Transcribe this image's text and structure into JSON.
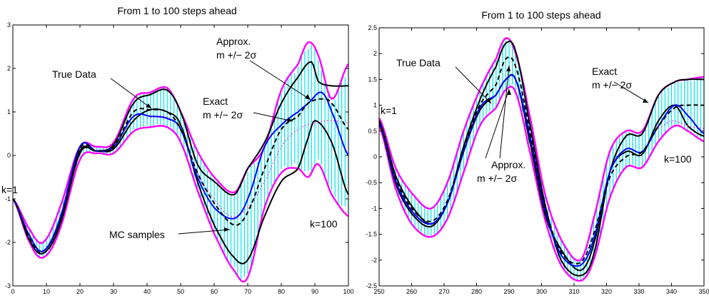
{
  "chart_data": [
    {
      "type": "line",
      "title": "From 1 to 100 steps ahead",
      "xlabel": "",
      "ylabel": "",
      "xlim": [
        0,
        100
      ],
      "ylim": [
        -3,
        3
      ],
      "xticks": [
        "0",
        "10",
        "20",
        "30",
        "40",
        "50",
        "60",
        "70",
        "80",
        "90",
        "100"
      ],
      "yticks": [
        "3",
        "2",
        "1",
        "0",
        "-1",
        "-2",
        "-3"
      ],
      "annotations": {
        "true_data": "True Data",
        "approx_1": "Approx.",
        "approx_2": "m +/− 2σ",
        "exact_1": "Exact",
        "exact_2": "m +/− 2σ",
        "mc": "MC samples",
        "k1": "k=1",
        "k100": "k=100"
      },
      "series": [
        {
          "role": "exact-upper",
          "color": "#ff00ff",
          "x": [
            0,
            5,
            9,
            14,
            20,
            25,
            30,
            36,
            41,
            46,
            50,
            55,
            60,
            66,
            70,
            75,
            80,
            85,
            88,
            91,
            95,
            100
          ],
          "y": [
            -1,
            -1.7,
            -2,
            -1.2,
            0.2,
            0.2,
            0.3,
            1.3,
            1.45,
            1.55,
            1.0,
            0.1,
            -0.5,
            -0.85,
            -0.3,
            0.2,
            1.5,
            2.1,
            2.6,
            2.3,
            1.3,
            2.1
          ]
        },
        {
          "role": "exact-lower",
          "color": "#ff00ff",
          "x": [
            0,
            5,
            9,
            14,
            20,
            25,
            30,
            36,
            41,
            46,
            50,
            55,
            60,
            66,
            70,
            75,
            80,
            85,
            88,
            91,
            95,
            100
          ],
          "y": [
            -1,
            -2.0,
            -2.35,
            -1.7,
            -0.1,
            0.05,
            0.05,
            0.55,
            0.65,
            0.65,
            0.3,
            -0.8,
            -1.8,
            -2.65,
            -2.8,
            -1.2,
            -0.4,
            -0.3,
            -0.5,
            -0.2,
            -0.9,
            -1.4
          ]
        },
        {
          "role": "true-data",
          "color": "#000000",
          "x": [
            0,
            5,
            9,
            14,
            20,
            25,
            30,
            36,
            41,
            46,
            50,
            55,
            60,
            66,
            70,
            75,
            80,
            85,
            89,
            91,
            95,
            100
          ],
          "y": [
            -1,
            -1.85,
            -2.2,
            -1.5,
            0.1,
            0.1,
            0.25,
            1.2,
            1.4,
            1.5,
            1.0,
            -0.2,
            -0.6,
            -0.9,
            -0.3,
            0.3,
            1.2,
            1.8,
            2.15,
            1.7,
            1.6,
            1.6
          ]
        },
        {
          "role": "mc-sample",
          "color": "#000000",
          "x": [
            0,
            5,
            9,
            14,
            20,
            25,
            30,
            36,
            41,
            46,
            50,
            55,
            60,
            66,
            70,
            75,
            80,
            85,
            88,
            90,
            95,
            100
          ],
          "y": [
            -1,
            -1.95,
            -2.25,
            -1.6,
            0.05,
            0.1,
            0.15,
            0.8,
            1.05,
            1.0,
            0.7,
            -0.6,
            -1.6,
            -2.35,
            -2.4,
            -1.4,
            -0.6,
            -0.3,
            0.4,
            0.8,
            0.3,
            -0.9
          ]
        },
        {
          "role": "exact-mean",
          "color": "#0000ff",
          "x": [
            0,
            5,
            9,
            14,
            20,
            25,
            30,
            36,
            41,
            46,
            50,
            55,
            60,
            66,
            70,
            75,
            80,
            85,
            88,
            92,
            95,
            100
          ],
          "y": [
            -1,
            -1.85,
            -2.2,
            -1.45,
            0.2,
            0.1,
            0.2,
            0.9,
            0.9,
            0.85,
            0.6,
            -0.5,
            -1.2,
            -1.45,
            -1.0,
            0.2,
            0.7,
            1.0,
            1.2,
            1.45,
            1.0,
            0.0
          ]
        },
        {
          "role": "approx-mean",
          "color": "#000000",
          "dash": true,
          "x": [
            0,
            5,
            9,
            14,
            20,
            25,
            30,
            36,
            41,
            46,
            50,
            55,
            60,
            66,
            70,
            75,
            80,
            85,
            88,
            92,
            95,
            100
          ],
          "y": [
            -1,
            -1.9,
            -2.25,
            -1.6,
            0.15,
            0.1,
            0.2,
            1.0,
            1.05,
            1.0,
            0.6,
            -0.4,
            -1.1,
            -1.6,
            -1.3,
            -0.3,
            0.6,
            0.9,
            1.2,
            1.3,
            1.2,
            0.6
          ]
        },
        {
          "role": "approx-band",
          "color": "#ff00ff",
          "dot": true,
          "x": [
            40,
            45,
            50,
            55,
            60,
            65,
            70,
            75,
            80,
            85,
            90,
            95,
            100
          ],
          "y": [
            0.85,
            0.9,
            0.6,
            -0.4,
            -1.0,
            -1.4,
            -1.2,
            -0.6,
            0.2,
            0.6,
            0.75,
            0.8,
            0.75
          ]
        }
      ],
      "error_bars": {
        "color": "#00e5ee",
        "x_start": 2,
        "x_end": 100
      }
    },
    {
      "type": "line",
      "title": "From 1 to 100 steps ahead",
      "xlabel": "",
      "ylabel": "",
      "xlim": [
        250,
        350
      ],
      "ylim": [
        -2.5,
        2.5
      ],
      "xticks": [
        "250",
        "260",
        "270",
        "280",
        "290",
        "300",
        "310",
        "320",
        "330",
        "340",
        "350"
      ],
      "yticks": [
        "2.5",
        "2",
        "1.5",
        "1",
        "0.5",
        "0",
        "-0.5",
        "-1",
        "-1.5",
        "-2",
        "-2.5"
      ],
      "annotations": {
        "true_data": "True Data",
        "approx_1": "Approx.",
        "approx_2": "m +/− 2σ",
        "exact_1": "Exact",
        "exact_2": "m +/− 2σ",
        "k1": "k=1",
        "k100": "k=100"
      },
      "series": [
        {
          "role": "exact-upper",
          "color": "#ff00ff",
          "x": [
            250,
            255,
            260,
            266,
            271,
            276,
            281,
            286,
            289,
            292,
            296,
            301,
            306,
            312,
            316,
            321,
            326,
            331,
            336,
            341,
            345,
            350
          ],
          "y": [
            0.75,
            -0.2,
            -0.7,
            -1.0,
            -0.5,
            0.5,
            1.3,
            1.9,
            2.3,
            2.0,
            0.9,
            -0.7,
            -1.6,
            -2.0,
            -1.2,
            0.1,
            0.5,
            0.5,
            1.2,
            1.45,
            1.5,
            1.55
          ]
        },
        {
          "role": "exact-lower",
          "color": "#ff00ff",
          "x": [
            250,
            255,
            260,
            266,
            271,
            276,
            281,
            286,
            289,
            292,
            296,
            301,
            306,
            312,
            316,
            321,
            326,
            331,
            336,
            341,
            345,
            350
          ],
          "y": [
            0.6,
            -0.6,
            -1.3,
            -1.55,
            -1.2,
            -0.3,
            0.6,
            0.95,
            1.3,
            1.25,
            0.2,
            -1.2,
            -2.1,
            -2.4,
            -2.0,
            -0.8,
            -0.2,
            -0.2,
            0.3,
            0.6,
            0.5,
            0.3
          ]
        },
        {
          "role": "true-data",
          "color": "#000000",
          "x": [
            250,
            255,
            260,
            266,
            271,
            276,
            281,
            286,
            289,
            292,
            296,
            301,
            306,
            312,
            316,
            321,
            326,
            331,
            336,
            341,
            345,
            350
          ],
          "y": [
            0.7,
            -0.35,
            -0.95,
            -1.3,
            -0.9,
            0.2,
            1.1,
            1.75,
            2.2,
            2.05,
            0.75,
            -0.9,
            -2.0,
            -2.3,
            -1.9,
            -0.3,
            0.4,
            0.45,
            1.2,
            1.45,
            1.5,
            1.5
          ]
        },
        {
          "role": "mc-sample",
          "color": "#000000",
          "x": [
            250,
            255,
            260,
            266,
            271,
            276,
            281,
            286,
            289,
            292,
            296,
            301,
            306,
            312,
            316,
            321,
            326,
            331,
            336,
            341,
            345,
            350
          ],
          "y": [
            0.65,
            -0.5,
            -1.1,
            -1.35,
            -0.9,
            0.1,
            0.9,
            1.2,
            1.5,
            1.5,
            0.4,
            -1.1,
            -1.8,
            -2.2,
            -1.7,
            -0.3,
            0.1,
            0.05,
            0.7,
            1.0,
            0.6,
            0.4
          ]
        },
        {
          "role": "exact-mean",
          "color": "#0000ff",
          "x": [
            250,
            255,
            260,
            266,
            271,
            276,
            281,
            286,
            289,
            292,
            296,
            301,
            306,
            312,
            316,
            321,
            326,
            331,
            336,
            341,
            345,
            350
          ],
          "y": [
            0.7,
            -0.45,
            -1.05,
            -1.3,
            -0.9,
            0.1,
            0.95,
            1.2,
            1.5,
            1.5,
            0.5,
            -1.0,
            -1.9,
            -2.1,
            -1.6,
            -0.3,
            0.15,
            0.1,
            0.6,
            1.0,
            0.8,
            0.45
          ]
        },
        {
          "role": "approx-mean",
          "color": "#000000",
          "dash": true,
          "x": [
            250,
            255,
            260,
            266,
            271,
            276,
            281,
            286,
            289,
            292,
            296,
            301,
            306,
            312,
            316,
            321,
            326,
            331,
            336,
            341,
            345,
            350
          ],
          "y": [
            0.7,
            -0.4,
            -1.0,
            -1.25,
            -0.85,
            0.15,
            1.0,
            1.4,
            1.9,
            1.75,
            0.6,
            -0.95,
            -1.85,
            -2.05,
            -1.5,
            -0.4,
            0.0,
            0.1,
            0.6,
            0.95,
            1.0,
            1.0
          ]
        },
        {
          "role": "approx-band",
          "color": "#ff00ff",
          "dot": true,
          "x": [
            336,
            340,
            345,
            350
          ],
          "y": [
            0.55,
            0.7,
            0.6,
            0.55
          ]
        }
      ],
      "error_bars": {
        "color": "#00e5ee",
        "x_start": 252,
        "x_end": 350
      }
    }
  ]
}
